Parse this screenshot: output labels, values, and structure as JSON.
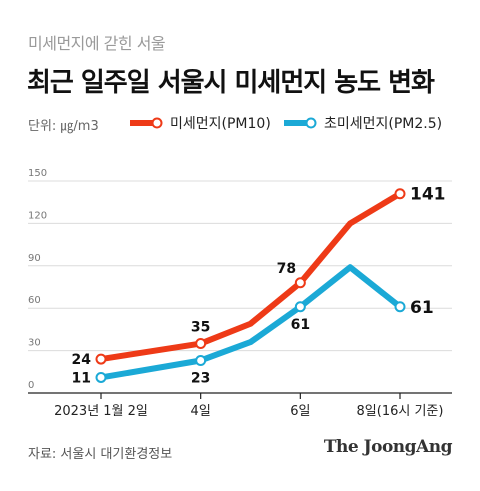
{
  "header": {
    "kicker": "미세먼지에 갇힌 서울",
    "title": "최근 일주일 서울시 미세먼지 농도 변화",
    "unit": "단위: ㎍/m3"
  },
  "colors": {
    "pm10": "#ee3a17",
    "pm25": "#1ba9d6",
    "grid": "#dcdcdc",
    "axis": "#222222"
  },
  "footer": {
    "source": "자료: 서울시 대기환경정보",
    "brand": "The JoongAng"
  },
  "chart_data": {
    "type": "line",
    "x_ticks": [
      {
        "x": 0,
        "label": "2023년 1월 2일"
      },
      {
        "x": 2,
        "label": "4일"
      },
      {
        "x": 4,
        "label": "6일"
      },
      {
        "x": 6,
        "label": "8일(16시 기준)"
      }
    ],
    "xlim": [
      0,
      6
    ],
    "ylim": [
      0,
      150
    ],
    "y_ticks": [
      0,
      30,
      60,
      90,
      120,
      150
    ],
    "grid": true,
    "legend_position": "top",
    "series": [
      {
        "name": "미세먼지(PM10)",
        "color_key": "pm10",
        "x": [
          0,
          2,
          3,
          4,
          5,
          6
        ],
        "values": [
          24,
          35,
          49,
          78,
          120,
          141
        ],
        "labeled_points": [
          {
            "x": 0,
            "value": 24,
            "label": "24",
            "pos": "left"
          },
          {
            "x": 2,
            "value": 35,
            "label": "35",
            "pos": "above"
          },
          {
            "x": 4,
            "value": 78,
            "label": "78",
            "pos": "above-left"
          },
          {
            "x": 6,
            "value": 141,
            "label": "141",
            "pos": "right"
          }
        ]
      },
      {
        "name": "초미세먼지(PM2.5)",
        "color_key": "pm25",
        "x": [
          0,
          2,
          3,
          4,
          5,
          6
        ],
        "values": [
          11,
          23,
          36,
          61,
          89,
          61
        ],
        "labeled_points": [
          {
            "x": 0,
            "value": 11,
            "label": "11",
            "pos": "left"
          },
          {
            "x": 2,
            "value": 23,
            "label": "23",
            "pos": "below"
          },
          {
            "x": 4,
            "value": 61,
            "label": "61",
            "pos": "below"
          },
          {
            "x": 6,
            "value": 61,
            "label": "61",
            "pos": "right"
          }
        ]
      }
    ]
  }
}
